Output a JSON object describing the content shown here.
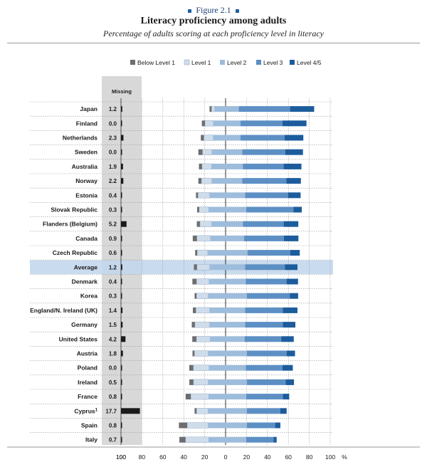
{
  "figure_label": "Figure 2.1",
  "colors": {
    "below_level_1": "#6d6d6d",
    "level_1": "#cfdcea",
    "level_2": "#9ebcdb",
    "level_3": "#5c8fc4",
    "level_45": "#1c5c9c",
    "missing_bar": "#1a1a1a",
    "missing_band": "#d8d8d8",
    "highlight_row": "#c3d7ec"
  },
  "chart_data": {
    "type": "bar",
    "title": "Literacy proficiency among adults",
    "subtitle": "Percentage of adults scoring at each proficiency level in literacy",
    "missing_header": "Missing",
    "unit": "%",
    "series": [
      {
        "name": "Below Level 1"
      },
      {
        "name": "Level 1"
      },
      {
        "name": "Level 2"
      },
      {
        "name": "Level 3"
      },
      {
        "name": "Level 4/5"
      }
    ],
    "x_ticks": [
      "100",
      "80",
      "60",
      "40",
      "20",
      "0",
      "20",
      "40",
      "60",
      "80",
      "100"
    ],
    "xlim": [
      -100,
      100
    ],
    "legend_position": "top",
    "highlight_category": "Average",
    "categories": [
      {
        "label": "Japan",
        "sup": "",
        "missing": "1.2",
        "missing_value": 1.2,
        "below": 2,
        "l1": 3,
        "l2": 23,
        "l3": 49,
        "l45": 23
      },
      {
        "label": "Finland",
        "sup": "",
        "missing": "0.0",
        "missing_value": 0.0,
        "below": 3,
        "l1": 8,
        "l2": 26,
        "l3": 40,
        "l45": 23
      },
      {
        "label": "Netherlands",
        "sup": "",
        "missing": "2.3",
        "missing_value": 2.3,
        "below": 3,
        "l1": 9,
        "l2": 26,
        "l3": 42,
        "l45": 18
      },
      {
        "label": "Sweden",
        "sup": "",
        "missing": "0.0",
        "missing_value": 0.0,
        "below": 4,
        "l1": 9,
        "l2": 29,
        "l3": 41,
        "l45": 17
      },
      {
        "label": "Australia",
        "sup": "",
        "missing": "1.9",
        "missing_value": 1.9,
        "below": 3,
        "l1": 9,
        "l2": 30,
        "l3": 39,
        "l45": 17
      },
      {
        "label": "Norway",
        "sup": "",
        "missing": "2.2",
        "missing_value": 2.2,
        "below": 3,
        "l1": 10,
        "l2": 29,
        "l3": 42,
        "l45": 14
      },
      {
        "label": "Estonia",
        "sup": "",
        "missing": "0.4",
        "missing_value": 0.4,
        "below": 2,
        "l1": 11,
        "l2": 34,
        "l3": 41,
        "l45": 12
      },
      {
        "label": "Slovak Republic",
        "sup": "",
        "missing": "0.3",
        "missing_value": 0.3,
        "below": 2,
        "l1": 9,
        "l2": 36,
        "l3": 45,
        "l45": 8
      },
      {
        "label": "Flanders (Belgium)",
        "sup": "",
        "missing": "5.2",
        "missing_value": 5.2,
        "below": 3,
        "l1": 11,
        "l2": 30,
        "l3": 39,
        "l45": 14
      },
      {
        "label": "Canada",
        "sup": "",
        "missing": "0.9",
        "missing_value": 0.9,
        "below": 4,
        "l1": 13,
        "l2": 32,
        "l3": 38,
        "l45": 14
      },
      {
        "label": "Czech Republic",
        "sup": "",
        "missing": "0.6",
        "missing_value": 0.6,
        "below": 2,
        "l1": 10,
        "l2": 38,
        "l3": 41,
        "l45": 9
      },
      {
        "label": "Average",
        "sup": "",
        "missing": "1.2",
        "missing_value": 1.2,
        "below": 3,
        "l1": 12,
        "l2": 34,
        "l3": 38,
        "l45": 12
      },
      {
        "label": "Denmark",
        "sup": "",
        "missing": "0.4",
        "missing_value": 0.4,
        "below": 4,
        "l1": 12,
        "l2": 35,
        "l3": 39,
        "l45": 11
      },
      {
        "label": "Korea",
        "sup": "",
        "missing": "0.3",
        "missing_value": 0.3,
        "below": 2,
        "l1": 11,
        "l2": 37,
        "l3": 41,
        "l45": 8
      },
      {
        "label": "England/N. Ireland (UK)",
        "sup": "",
        "missing": "1.4",
        "missing_value": 1.4,
        "below": 3,
        "l1": 13,
        "l2": 34,
        "l3": 36,
        "l45": 14
      },
      {
        "label": "Germany",
        "sup": "",
        "missing": "1.5",
        "missing_value": 1.5,
        "below": 3,
        "l1": 14,
        "l2": 34,
        "l3": 36,
        "l45": 12
      },
      {
        "label": "United States",
        "sup": "",
        "missing": "4.2",
        "missing_value": 4.2,
        "below": 4,
        "l1": 13,
        "l2": 33,
        "l3": 35,
        "l45": 12
      },
      {
        "label": "Austria",
        "sup": "",
        "missing": "1.8",
        "missing_value": 1.8,
        "below": 2,
        "l1": 13,
        "l2": 37,
        "l3": 38,
        "l45": 8
      },
      {
        "label": "Poland",
        "sup": "",
        "missing": "0.0",
        "missing_value": 0.0,
        "below": 4,
        "l1": 15,
        "l2": 35,
        "l3": 35,
        "l45": 10
      },
      {
        "label": "Ireland",
        "sup": "",
        "missing": "0.5",
        "missing_value": 0.5,
        "below": 4,
        "l1": 14,
        "l2": 37,
        "l3": 37,
        "l45": 8
      },
      {
        "label": "France",
        "sup": "",
        "missing": "0.8",
        "missing_value": 0.8,
        "below": 5,
        "l1": 17,
        "l2": 36,
        "l3": 35,
        "l45": 6
      },
      {
        "label": "Cyprus",
        "sup": "1",
        "missing": "17.7",
        "missing_value": 17.7,
        "below": 2,
        "l1": 11,
        "l2": 37,
        "l3": 32,
        "l45": 6
      },
      {
        "label": "Spain",
        "sup": "",
        "missing": "0.8",
        "missing_value": 0.8,
        "below": 8,
        "l1": 20,
        "l2": 37,
        "l3": 27,
        "l45": 5
      },
      {
        "label": "Italy",
        "sup": "",
        "missing": "0.7",
        "missing_value": 0.7,
        "below": 6,
        "l1": 22,
        "l2": 36,
        "l3": 26,
        "l45": 3
      }
    ]
  }
}
